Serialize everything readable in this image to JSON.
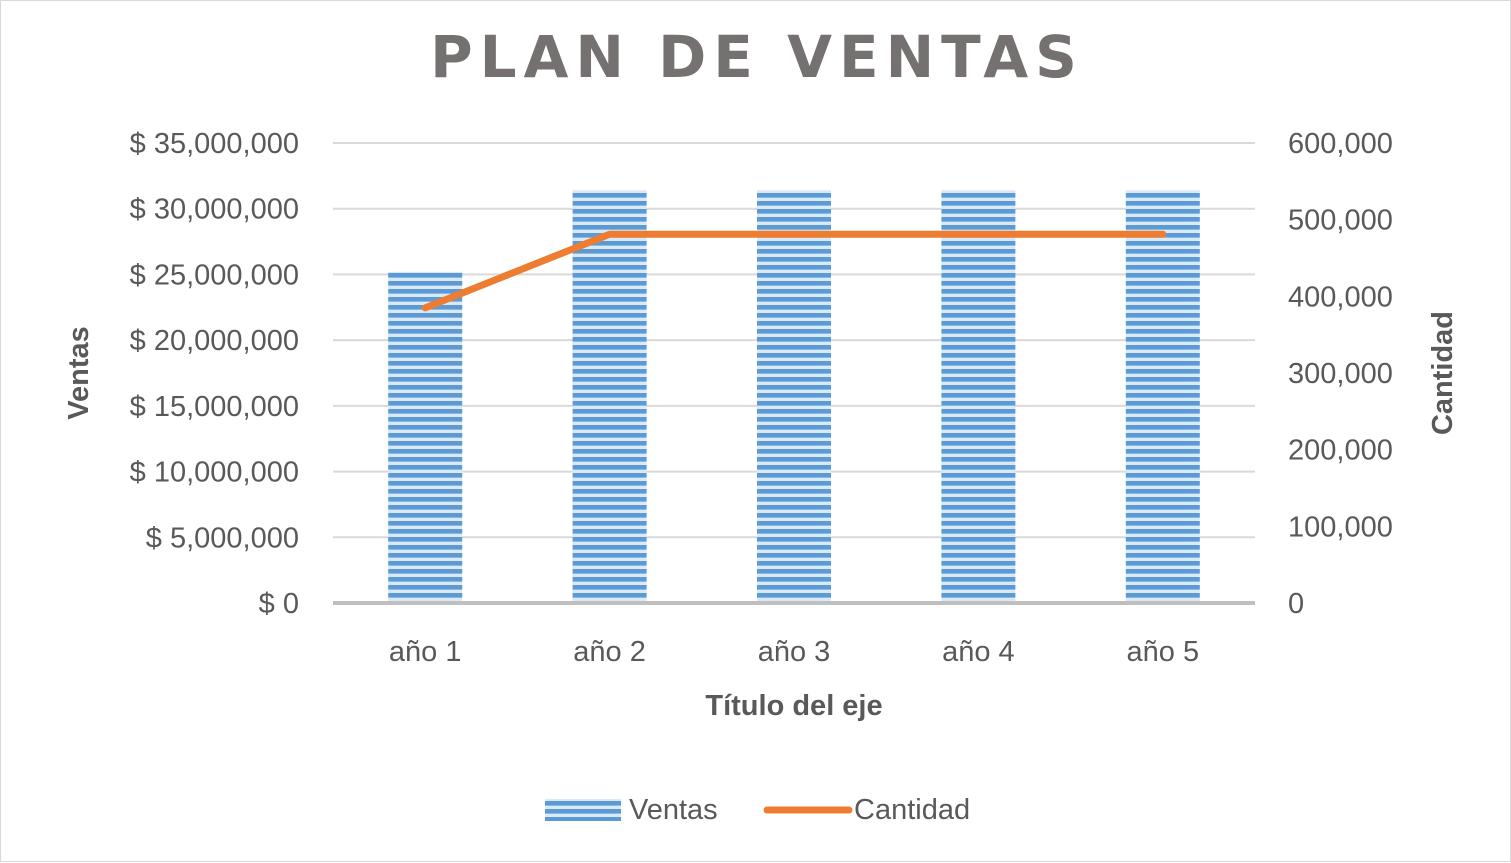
{
  "chart_data": {
    "type": "bar",
    "title": "PLAN DE VENTAS",
    "xlabel": "Título del eje",
    "ylabel": "Ventas",
    "y2label": "Cantidad",
    "categories": [
      "año 1",
      "año 2",
      "año 3",
      "año 4",
      "año 5"
    ],
    "ylim": [
      0,
      35000000
    ],
    "y2lim": [
      0,
      600000
    ],
    "yticks": [
      0,
      5000000,
      10000000,
      15000000,
      20000000,
      25000000,
      30000000,
      35000000
    ],
    "ytick_labels": [
      "$ 0",
      "$ 5,000,000",
      "$ 10,000,000",
      "$ 15,000,000",
      "$ 20,000,000",
      "$ 25,000,000",
      "$ 30,000,000",
      "$ 35,000,000"
    ],
    "y2ticks": [
      0,
      100000,
      200000,
      300000,
      400000,
      500000,
      600000
    ],
    "y2tick_labels": [
      "0",
      "100,000",
      "200,000",
      "300,000",
      "400,000",
      "500,000",
      "600,000"
    ],
    "grid": true,
    "legend_position": "bottom",
    "series": [
      {
        "name": "Ventas",
        "type": "bar",
        "axis": "left",
        "color": "#5b9bd5",
        "values": [
          25200000,
          31400000,
          31400000,
          31400000,
          31400000
        ]
      },
      {
        "name": "Cantidad",
        "type": "line",
        "axis": "right",
        "color": "#ed7d31",
        "values": [
          385000,
          481000,
          481000,
          481000,
          481000
        ]
      }
    ]
  }
}
